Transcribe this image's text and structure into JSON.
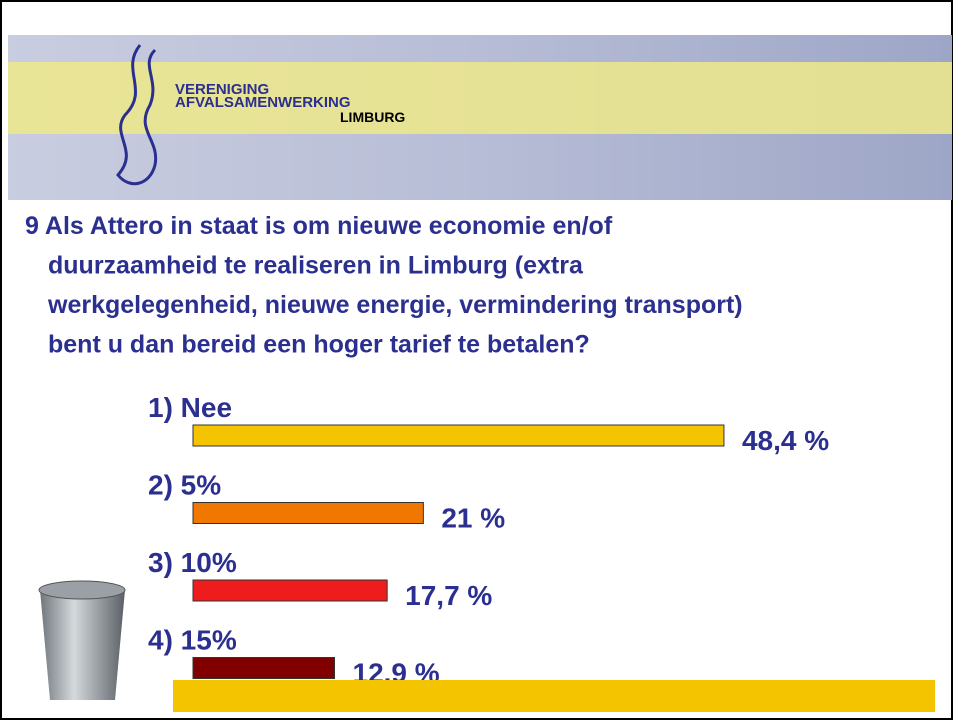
{
  "logo": {
    "line1": "VERENIGING",
    "line2": "AFVALSAMENWERKING",
    "line3": "LIMBURG"
  },
  "chart_data": {
    "type": "bar",
    "title_lines": [
      "9 Als Attero in staat is om nieuwe economie en/of",
      "duurzaamheid te realiseren in Limburg (extra",
      "werkgelegenheid, nieuwe energie, vermindering transport)",
      "bent u dan bereid een hoger tarief te betalen?"
    ],
    "categories": [
      "1) Nee",
      "2) 5%",
      "3) 10%",
      "4) 15%"
    ],
    "values": [
      48.4,
      21,
      17.7,
      12.9
    ],
    "value_labels": [
      "48,4 %",
      "21 %",
      "17,7 %",
      "12.9 %"
    ],
    "colors": [
      "#f5c400",
      "#f07800",
      "#ee1c1c",
      "#800000"
    ]
  }
}
